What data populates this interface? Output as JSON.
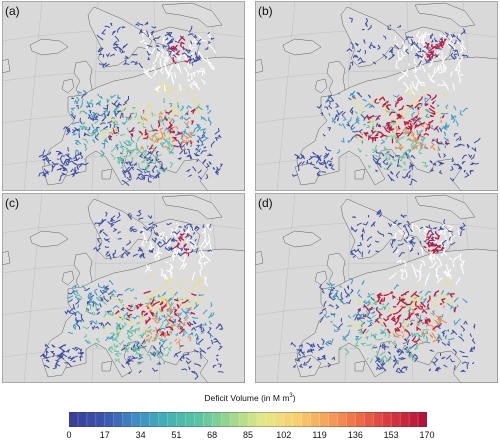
{
  "panels": [
    {
      "id": "a",
      "label": "(a)",
      "seed": 11,
      "hotspot": [
        170,
        125
      ],
      "counts": {
        "blue": 300,
        "cyan": 110,
        "green": 90,
        "yellow": 60,
        "orange": 30,
        "red": 35
      }
    },
    {
      "id": "b",
      "label": "(b)",
      "seed": 29,
      "hotspot": [
        150,
        115
      ],
      "counts": {
        "blue": 220,
        "cyan": 80,
        "green": 60,
        "yellow": 40,
        "orange": 35,
        "red": 95
      }
    },
    {
      "id": "c",
      "label": "(c)",
      "seed": 47,
      "hotspot": [
        165,
        125
      ],
      "counts": {
        "blue": 260,
        "cyan": 110,
        "green": 100,
        "yellow": 70,
        "orange": 40,
        "red": 45
      }
    },
    {
      "id": "d",
      "label": "(d)",
      "seed": 83,
      "hotspot": [
        150,
        118
      ],
      "counts": {
        "blue": 230,
        "cyan": 90,
        "green": 70,
        "yellow": 40,
        "orange": 30,
        "red": 85
      }
    }
  ],
  "legend": {
    "title_prefix": "Deficit Volume (in M m",
    "title_sup": "3",
    "title_suffix": ")",
    "ticks": [
      "0",
      "17",
      "34",
      "51",
      "68",
      "85",
      "102",
      "119",
      "136",
      "153",
      "170"
    ],
    "colors": [
      "#3a3f9b",
      "#3b56b0",
      "#3f8ec4",
      "#43b3b4",
      "#5cc5a0",
      "#9ed98b",
      "#e6e888",
      "#f6d16f",
      "#f5a25c",
      "#ee6b45",
      "#d8363c",
      "#b4143a"
    ]
  },
  "map_colors": {
    "background": "#d9d9d9",
    "land": "#dcdcdc",
    "coastline": "#606060",
    "graticule": "#b8b8b8",
    "white_rivers": "#ffffff"
  }
}
